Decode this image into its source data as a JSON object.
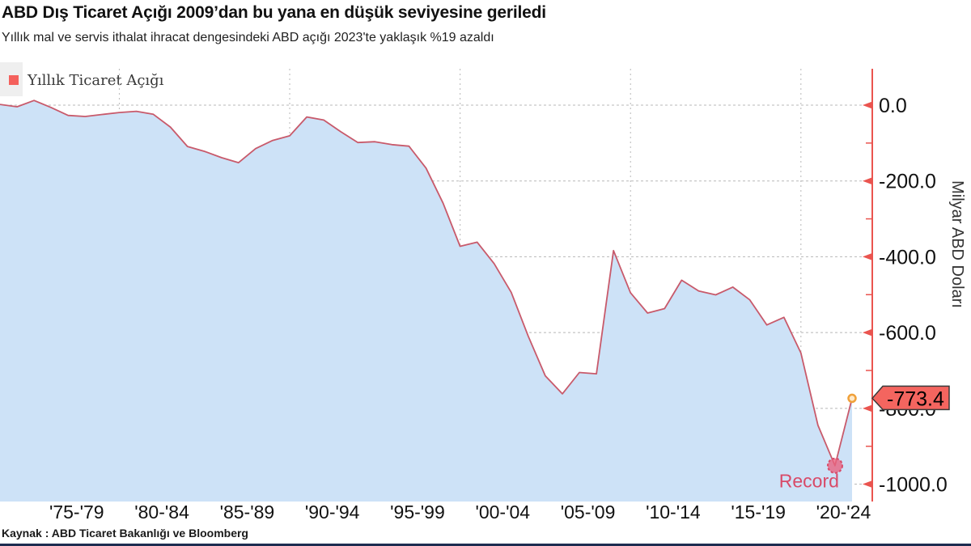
{
  "header": {
    "title": "ABD Dış Ticaret Açığı 2009’dan bu yana en düşük seviyesine geriledi",
    "subtitle": "Yıllık mal ve servis ithalat ihracat dengesindeki ABD açığı 2023'te yaklaşık %19 azaldı"
  },
  "legend": {
    "label": "Yıllık Ticaret Açığı",
    "swatch_color": "#f4605c"
  },
  "source": "Kaynak : ABD Ticaret Bakanlığı ve Bloomberg",
  "annotations": {
    "last_value_label": "-773.4",
    "record_label": "Record"
  },
  "chart_data": {
    "type": "area",
    "title": "ABD Dış Ticaret Açığı 2009’dan bu yana en düşük seviyesine geriledi",
    "subtitle": "Yıllık mal ve servis ithalat ihracat dengesindeki ABD açığı 2023'te yaklaşık %19 azaldı",
    "xlabel": "",
    "ylabel": "Milyar ABD Doları",
    "legend_position": "top-left",
    "grid": true,
    "x": [
      1973,
      1974,
      1975,
      1976,
      1977,
      1978,
      1979,
      1980,
      1981,
      1982,
      1983,
      1984,
      1985,
      1986,
      1987,
      1988,
      1989,
      1990,
      1991,
      1992,
      1993,
      1994,
      1995,
      1996,
      1997,
      1998,
      1999,
      2000,
      2001,
      2002,
      2003,
      2004,
      2005,
      2006,
      2007,
      2008,
      2009,
      2010,
      2011,
      2012,
      2013,
      2014,
      2015,
      2016,
      2017,
      2018,
      2019,
      2020,
      2021,
      2022,
      2023
    ],
    "series": [
      {
        "name": "Yıllık Ticaret Açığı",
        "values": [
          1.9,
          -4.3,
          12.4,
          -6.1,
          -27.2,
          -29.8,
          -24.6,
          -19.4,
          -16.2,
          -24.2,
          -57.8,
          -109.1,
          -121.9,
          -138.5,
          -151.7,
          -114.6,
          -93.1,
          -80.9,
          -31.1,
          -39.2,
          -70.3,
          -98.5,
          -96.4,
          -104.1,
          -108.3,
          -166.1,
          -258.6,
          -372.5,
          -361.5,
          -418.0,
          -493.9,
          -609.9,
          -714.2,
          -761.7,
          -705.4,
          -708.7,
          -383.8,
          -495.0,
          -548.6,
          -536.8,
          -461.9,
          -490.2,
          -500.4,
          -480.0,
          -513.8,
          -579.9,
          -559.7,
          -653.9,
          -845.0,
          -951.2,
          -773.4
        ]
      }
    ],
    "x_tick_labels": [
      "'75-'79",
      "'80-'84",
      "'85-'89",
      "'90-'94",
      "'95-'99",
      "'00-'04",
      "'05-'09",
      "'10-'14",
      "'15-'19",
      "'20-'24"
    ],
    "x_grid_years": [
      1980,
      1990,
      2000,
      2010,
      2020
    ],
    "y_ticks": [
      0,
      -200,
      -400,
      -600,
      -800,
      -1000
    ],
    "y_tick_labels": [
      "0.0",
      "-200.0",
      "-400.0",
      "-600.0",
      "-800.0",
      "-1000.0"
    ],
    "y_minor_ticks": [
      -100,
      -300,
      -500,
      -700,
      -900
    ],
    "ylim": [
      -1046,
      96
    ],
    "annotations": [
      {
        "year": 2023,
        "value": -773.4,
        "label": "-773.4",
        "style": "tag"
      },
      {
        "year": 2022,
        "value": -951.2,
        "label": "Record",
        "style": "record-marker"
      }
    ],
    "colors": {
      "line": "#c85a6b",
      "fill": "#cde2f7",
      "axis": "#ea544f",
      "grid": "#b8b8b8",
      "tag_bg": "#f4655f",
      "tag_border": "#3a3a3a",
      "record": "#d84a68",
      "record_fill": "#e86380",
      "end_marker_ring": "#f0a13a",
      "end_marker_fill": "#ffe9c9"
    }
  }
}
